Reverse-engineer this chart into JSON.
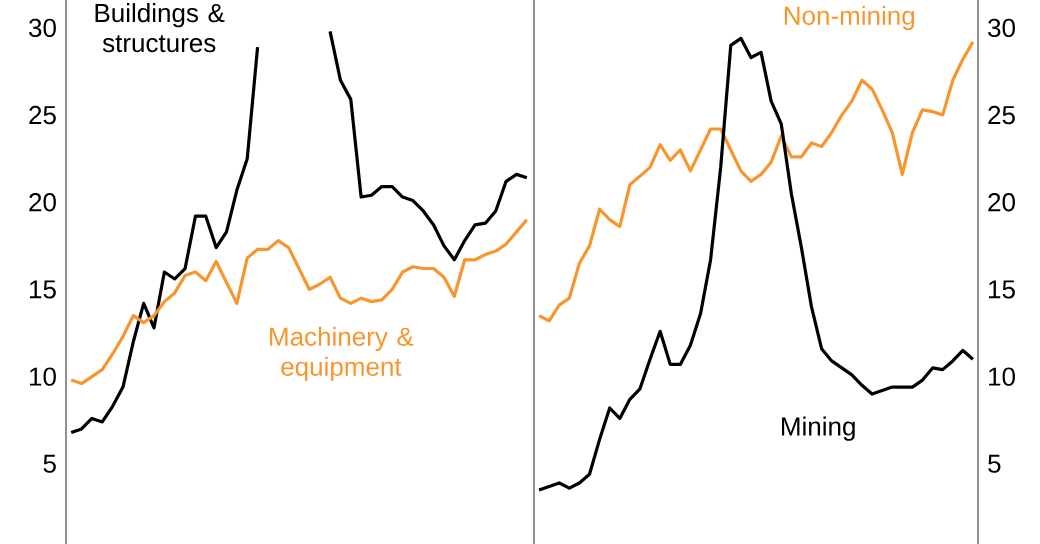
{
  "chart_data": [
    {
      "type": "line",
      "categories": [
        null,
        null,
        null,
        null,
        null,
        null,
        null,
        null,
        null,
        null,
        null,
        null,
        null,
        null,
        null,
        null,
        null,
        null,
        null,
        null,
        null,
        null,
        null,
        null,
        null,
        null,
        null,
        null,
        null,
        null,
        null,
        null,
        null,
        null,
        null,
        null,
        null,
        null,
        null,
        null,
        null,
        null,
        null,
        null,
        null
      ],
      "series": [
        {
          "name": "Buildings & structures",
          "color": "#000000",
          "values": [
            6.8,
            7.0,
            7.6,
            7.4,
            8.3,
            9.4,
            12.0,
            14.2,
            12.8,
            16.0,
            15.6,
            16.2,
            19.2,
            19.2,
            17.4,
            18.3,
            20.7,
            22.5,
            28.9,
            null,
            null,
            null,
            null,
            null,
            null,
            29.8,
            27.0,
            25.9,
            20.3,
            20.4,
            20.9,
            20.9,
            20.3,
            20.1,
            19.5,
            18.7,
            17.5,
            16.7,
            17.8,
            18.7,
            18.8,
            19.5,
            21.2,
            21.6,
            21.4
          ]
        },
        {
          "name": "Machinery & equipment",
          "color": "#f7962e",
          "values": [
            9.8,
            9.6,
            10.0,
            10.4,
            11.3,
            12.3,
            13.5,
            13.1,
            13.5,
            14.3,
            14.8,
            15.8,
            16.0,
            15.5,
            16.6,
            15.4,
            14.2,
            16.8,
            17.3,
            17.3,
            17.8,
            17.4,
            16.2,
            15.0,
            15.3,
            15.7,
            14.5,
            14.2,
            14.5,
            14.3,
            14.4,
            15.0,
            16.0,
            16.3,
            16.2,
            16.2,
            15.7,
            14.6,
            16.7,
            16.7,
            17.0,
            17.2,
            17.6,
            18.3,
            19.0
          ]
        }
      ],
      "ylim": [
        0.4,
        31.6
      ],
      "yticks": [
        5,
        10,
        15,
        20,
        25,
        30
      ],
      "tick_labels": "y"
    },
    {
      "type": "line",
      "categories": [
        null,
        null,
        null,
        null,
        null,
        null,
        null,
        null,
        null,
        null,
        null,
        null,
        null,
        null,
        null,
        null,
        null,
        null,
        null,
        null,
        null,
        null,
        null,
        null,
        null,
        null,
        null,
        null,
        null,
        null,
        null,
        null,
        null,
        null,
        null,
        null,
        null,
        null,
        null,
        null,
        null,
        null,
        null,
        null
      ],
      "series": [
        {
          "name": "Non-mining",
          "color": "#f7962e",
          "values": [
            13.5,
            13.2,
            14.1,
            14.5,
            16.5,
            17.5,
            19.6,
            19.0,
            18.6,
            21.0,
            21.5,
            22.0,
            23.3,
            22.4,
            23.0,
            21.8,
            23.0,
            24.2,
            24.2,
            23.0,
            21.8,
            21.2,
            21.6,
            22.3,
            23.8,
            22.6,
            22.6,
            23.4,
            23.2,
            24.0,
            25.0,
            25.8,
            27.0,
            26.5,
            25.3,
            24.0,
            21.6,
            24.0,
            25.3,
            25.2,
            25.0,
            27.0,
            28.2,
            29.2
          ]
        },
        {
          "name": "Mining",
          "color": "#000000",
          "values": [
            3.5,
            3.7,
            3.9,
            3.6,
            3.9,
            4.4,
            6.4,
            8.2,
            7.6,
            8.7,
            9.3,
            11.0,
            12.6,
            10.7,
            10.7,
            11.8,
            13.6,
            16.7,
            22.0,
            29.0,
            29.4,
            28.3,
            28.6,
            25.8,
            24.5,
            20.5,
            17.4,
            14.0,
            11.6,
            10.9,
            10.5,
            10.1,
            9.5,
            9.0,
            9.2,
            9.4,
            9.4,
            9.4,
            9.8,
            10.5,
            10.4,
            10.9,
            11.5,
            11.0
          ]
        }
      ],
      "ylim": [
        0.4,
        31.6
      ],
      "yticks": [
        5,
        10,
        15,
        20,
        25,
        30
      ],
      "tick_labels": "y"
    }
  ]
}
